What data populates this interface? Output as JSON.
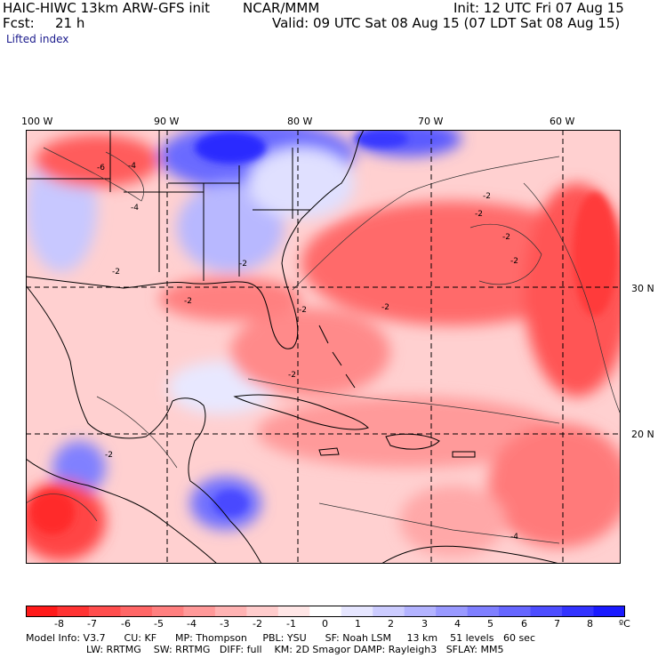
{
  "header": {
    "title": "HAIC-HIWC 13km ARW-GFS init",
    "org": "NCAR/MMM",
    "init": "Init: 12 UTC Fri 07 Aug 15",
    "fcst_label": "Fcst:",
    "fcst_value": "21 h",
    "valid": "Valid: 09 UTC Sat 08 Aug 15 (07 LDT Sat 08 Aug 15)",
    "field": "Lifted index"
  },
  "axes": {
    "longitudes": [
      "100 W",
      "90 W",
      "80 W",
      "70 W",
      "60 W"
    ],
    "latitudes": [
      "30 N",
      "20 N"
    ]
  },
  "colorbar": {
    "labels": [
      "-8",
      "-7",
      "-6",
      "-5",
      "-4",
      "-3",
      "-2",
      "-1",
      "0",
      "1",
      "2",
      "3",
      "4",
      "5",
      "6",
      "7",
      "8"
    ],
    "unit": "ºC",
    "colors": [
      "#ff1a1a",
      "#ff3333",
      "#ff4d4d",
      "#ff6666",
      "#ff7f7f",
      "#ff9999",
      "#ffb3b3",
      "#ffcccc",
      "#ffe6e6",
      "#ffffff",
      "#e6e6ff",
      "#ccccff",
      "#b3b3ff",
      "#9999ff",
      "#7f7fff",
      "#6666ff",
      "#4d4dff",
      "#3333ff",
      "#1a1aff"
    ]
  },
  "footer": {
    "line1": "Model Info: V3.7      CU: KF      MP: Thompson     PBL: YSU      SF: Noah LSM     13 km    51 levels   60 sec",
    "line2": "LW: RRTMG    SW: RRTMG   DIFF: full    KM: 2D Smagor DAMP: Rayleigh3   SFLAY: MM5"
  },
  "map_labels": [
    "-6",
    "-4",
    "-4",
    "-2",
    "-2",
    "-2",
    "-2",
    "-2",
    "-2",
    "-2",
    "-4",
    "-2",
    "-2",
    "-2",
    "-2"
  ]
}
